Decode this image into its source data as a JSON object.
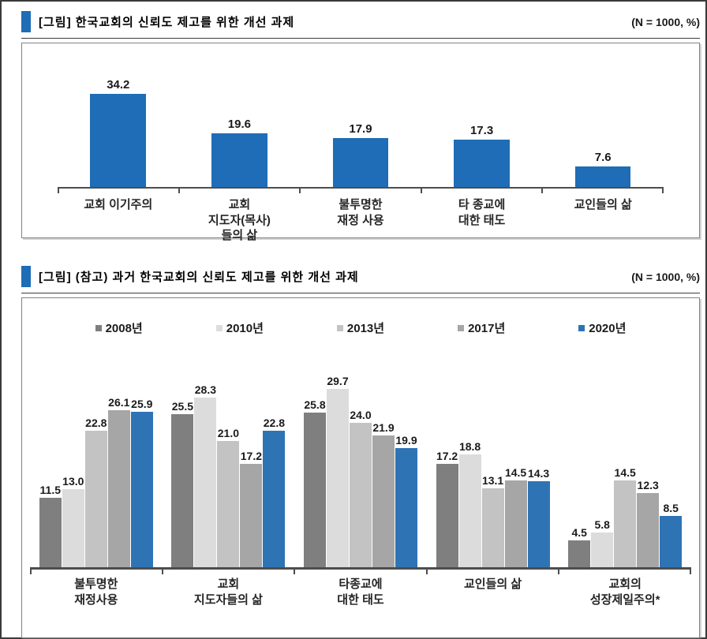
{
  "section1": {
    "title": "[그림] 한국교회의 신뢰도 제고를 위한 개선 과제",
    "n_label": "(N = 1000, %)"
  },
  "section2": {
    "title": "[그림] (참고) 과거 한국교회의 신뢰도 제고를 위한 개선 과제",
    "n_label": "(N = 1000, %)"
  },
  "colors": {
    "accent_blue": "#1e6db6",
    "axis": "#4d4d4d"
  },
  "chart_data": [
    {
      "type": "bar",
      "title": "한국교회의 신뢰도 제고를 위한 개선 과제",
      "unit": "%",
      "n": 1000,
      "categories": [
        "교회 이기주의",
        "교회\n지도자(목사)\n들의 삶",
        "불투명한\n재정 사용",
        "타 종교에\n대한 태도",
        "교인들의 삶"
      ],
      "values": [
        34.2,
        19.6,
        17.9,
        17.3,
        7.6
      ],
      "value_labels": [
        "34.2",
        "19.6",
        "17.9",
        "17.3",
        "7.6"
      ],
      "bar_color": "#1e6db6",
      "ylim": [
        0,
        40
      ],
      "grid": false,
      "legend_position": "none"
    },
    {
      "type": "bar",
      "title": "(참고) 과거 한국교회의 신뢰도 제고를 위한 개선 과제",
      "unit": "%",
      "n": 1000,
      "categories": [
        "불투명한\n재정사용",
        "교회\n지도자들의 삶",
        "타종교에\n대한 태도",
        "교인들의 삶",
        "교회의\n성장제일주의*"
      ],
      "series": [
        {
          "name": "2008년",
          "color": "#7f7f7f",
          "values": [
            11.5,
            25.5,
            25.8,
            17.2,
            4.5
          ]
        },
        {
          "name": "2010년",
          "color": "#dcdcdc",
          "values": [
            13.0,
            28.3,
            29.7,
            18.8,
            5.8
          ]
        },
        {
          "name": "2013년",
          "color": "#c3c3c3",
          "values": [
            22.8,
            21.0,
            24.0,
            13.1,
            14.5
          ]
        },
        {
          "name": "2017년",
          "color": "#a6a6a6",
          "values": [
            26.1,
            17.2,
            21.9,
            14.5,
            12.3
          ]
        },
        {
          "name": "2020년",
          "color": "#2e74b5",
          "values": [
            25.9,
            22.8,
            19.9,
            14.3,
            8.5
          ]
        }
      ],
      "value_labels": [
        [
          "11.5",
          "13.0",
          "22.8",
          "26.1",
          "25.9"
        ],
        [
          "25.5",
          "28.3",
          "21.0",
          "17.2",
          "22.8"
        ],
        [
          "25.8",
          "29.7",
          "24.0",
          "21.9",
          "19.9"
        ],
        [
          "17.2",
          "18.8",
          "13.1",
          "14.5",
          "14.3"
        ],
        [
          "4.5",
          "5.8",
          "14.5",
          "12.3",
          "8.5"
        ]
      ],
      "ylim": [
        0,
        32
      ],
      "grid": false,
      "legend_position": "top"
    }
  ]
}
